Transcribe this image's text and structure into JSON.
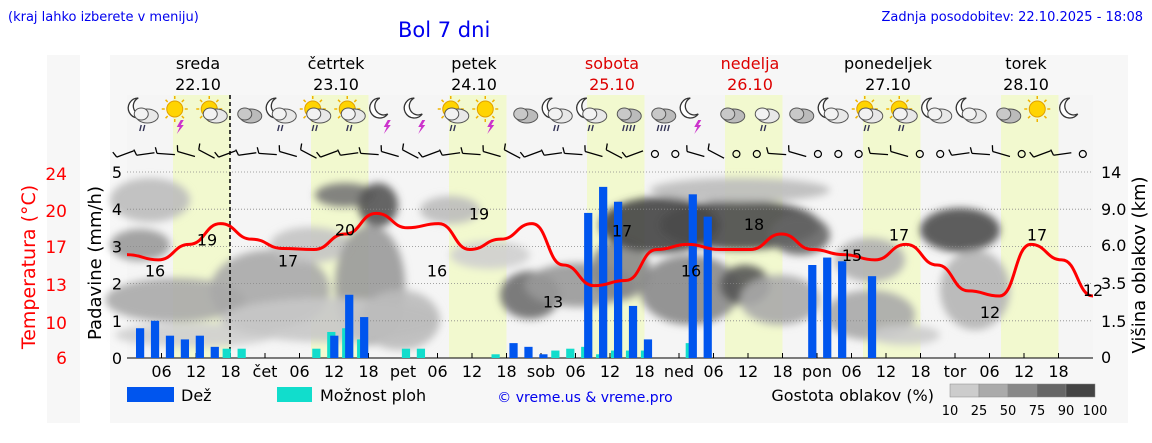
{
  "header": {
    "location_hint": "(kraj lahko izberete v meniju)",
    "title": "Bol 7 dni",
    "updated": "Zadnja posodobitev: 22.10.2025 - 18:08"
  },
  "colors": {
    "temperature": "#ff0000",
    "rain": "#0055ee",
    "shower_chance": "#11ddcc",
    "weekend": "#dd0000",
    "link": "#0000ee",
    "day_band": "#f2f9cf",
    "night_band": "#f5f5f5"
  },
  "days": [
    {
      "name": "sreda",
      "date": "22.10",
      "weekend": false
    },
    {
      "name": "četrtek",
      "date": "23.10",
      "weekend": false
    },
    {
      "name": "petek",
      "date": "24.10",
      "weekend": false
    },
    {
      "name": "sobota",
      "date": "25.10",
      "weekend": true
    },
    {
      "name": "nedelja",
      "date": "26.10",
      "weekend": true
    },
    {
      "name": "ponedeljek",
      "date": "27.10",
      "weekend": false
    },
    {
      "name": "torek",
      "date": "28.10",
      "weekend": false
    }
  ],
  "weather_icons": [
    "moon-cloud-rain-icon",
    "sun-thunder-icon",
    "sun-cloud-icon",
    "cloud-icon",
    "moon-cloud-rain-icon",
    "sun-cloud-rain-icon",
    "sun-cloud-rain-icon",
    "moon-thunder-icon",
    "moon-thunder-icon",
    "sun-cloud-rain-icon",
    "sun-thunder-icon",
    "cloud-icon",
    "moon-cloud-rain-icon",
    "moon-cloud-rain-icon",
    "cloud-heavy-rain-icon",
    "cloud-heavy-rain-icon",
    "moon-thunder-icon",
    "cloud-icon",
    "cloud-rain-icon",
    "cloud-icon",
    "moon-cloud-icon",
    "sun-cloud-rain-icon",
    "sun-cloud-rain-icon",
    "moon-cloud-icon",
    "moon-cloud-icon",
    "cloud-icon",
    "sun-icon",
    "moon-icon"
  ],
  "chart_data": {
    "type": "line",
    "x_start": "22.10.2025 00:00",
    "x_step": "3 h",
    "x_tick_labels": [
      "06",
      "12",
      "18",
      "čet",
      "06",
      "12",
      "18",
      "pet",
      "06",
      "12",
      "18",
      "sob",
      "06",
      "12",
      "18",
      "ned",
      "06",
      "12",
      "18",
      "pon",
      "06",
      "12",
      "18",
      "tor",
      "06",
      "12",
      "18"
    ],
    "y_left_label": "Padavine (mm/h)",
    "y_left_ticks": [
      "0",
      "1",
      "2",
      "3",
      "4",
      "5"
    ],
    "y_left_range": [
      0,
      5
    ],
    "y_temp_label": "Temperatura (°C)",
    "y_temp_ticks": [
      "6",
      "10",
      "13",
      "17",
      "20",
      "24"
    ],
    "y_right_label": "Višina oblakov (km)",
    "y_right_ticks": [
      "0",
      "1.5",
      "3.5",
      "6.0",
      "9.0",
      "14"
    ],
    "temperature": [
      16,
      15.5,
      17,
      19,
      17.5,
      16.6,
      16.5,
      18,
      20,
      18.6,
      19,
      16.5,
      17.5,
      19,
      15,
      13,
      13.5,
      16.5,
      17,
      16.5,
      16.5,
      18,
      16.5,
      16,
      15.5,
      17,
      15,
      12.5,
      12,
      17,
      15.5,
      12
    ],
    "temperature_labels": [
      {
        "label": "16",
        "value": 16
      },
      {
        "label": "19",
        "value": 19
      },
      {
        "label": "17",
        "value": 17
      },
      {
        "label": "20",
        "value": 20
      },
      {
        "label": "16",
        "value": 16
      },
      {
        "label": "19",
        "value": 19
      },
      {
        "label": "13",
        "value": 13
      },
      {
        "label": "17",
        "value": 17
      },
      {
        "label": "16",
        "value": 16
      },
      {
        "label": "18",
        "value": 18
      },
      {
        "label": "15",
        "value": 15
      },
      {
        "label": "17",
        "value": 17
      },
      {
        "label": "12",
        "value": 12
      },
      {
        "label": "17",
        "value": 17
      },
      {
        "label": "12",
        "value": 12
      }
    ],
    "rain_mm_h": [
      0.8,
      1.0,
      0.6,
      0.5,
      0.6,
      0.3,
      0,
      0,
      0,
      0,
      0,
      0,
      0,
      0.6,
      1.7,
      1.1,
      0,
      0,
      0,
      0,
      0,
      0,
      0,
      0,
      0,
      0.4,
      0.3,
      0.1,
      0,
      0,
      3.9,
      4.6,
      4.2,
      1.4,
      0.5,
      0,
      0,
      4.4,
      3.8,
      0,
      0,
      0,
      0,
      0,
      0,
      2.5,
      2.7,
      2.6,
      0,
      2.2,
      0,
      0,
      0,
      0,
      0,
      0,
      0,
      0,
      0,
      0,
      0,
      0,
      0,
      0
    ],
    "shower_chance_mm_h": [
      0,
      0,
      0,
      0,
      0,
      0,
      0.25,
      0.25,
      0,
      0,
      0,
      0,
      0.25,
      0.7,
      0.8,
      0.5,
      0,
      0,
      0.25,
      0.25,
      0,
      0,
      0,
      0,
      0.1,
      0,
      0,
      0,
      0.2,
      0.25,
      0.3,
      0.1,
      0.2,
      0.2,
      0.2,
      0,
      0,
      0.4,
      0,
      0,
      0,
      0,
      0,
      0,
      0,
      0,
      0,
      0,
      0,
      0,
      0,
      0,
      0,
      0,
      0,
      0,
      0,
      0,
      0,
      0,
      0,
      0,
      0,
      0
    ],
    "legend": [
      "Dež",
      "Možnost ploh"
    ],
    "cloud_density_label": "Gostota oblakov (%)",
    "cloud_density_steps": [
      "10",
      "25",
      "50",
      "75",
      "90",
      "100"
    ],
    "grid": true
  },
  "footer": {
    "copyright": "© vreme.us & vreme.pro"
  }
}
